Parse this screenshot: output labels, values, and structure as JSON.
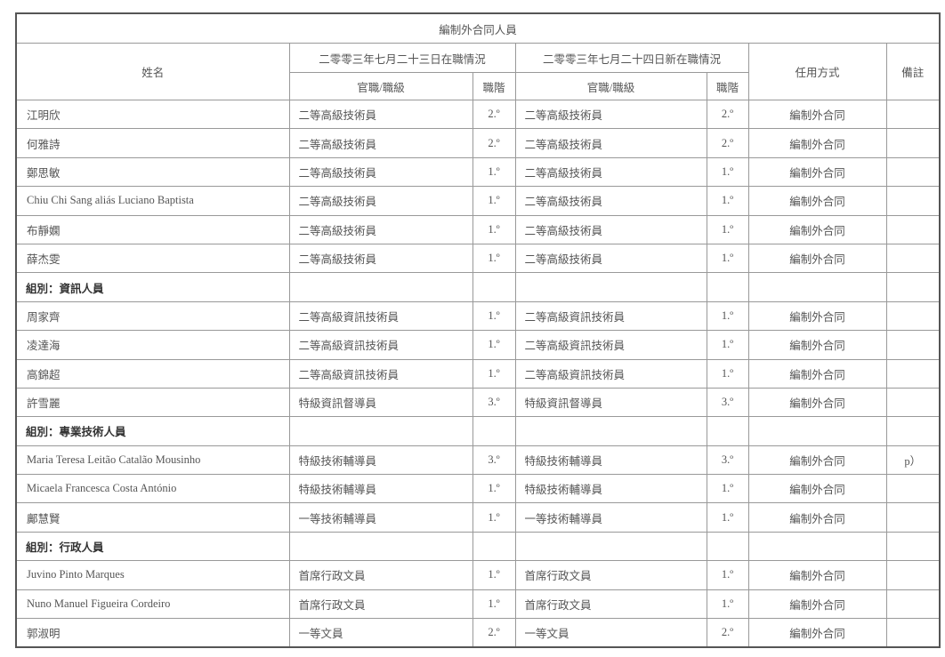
{
  "title": "編制外合同人員",
  "headers": {
    "name": "姓名",
    "period1": "二零零三年七月二十三日在職情況",
    "period2": "二零零三年七月二十四日新在職情況",
    "mode": "任用方式",
    "remarks": "備註",
    "rank": "官職/職級",
    "grade": "職階"
  },
  "rows": [
    {
      "name": "江明欣",
      "rank1": "二等高級技術員",
      "grade1": "2.º",
      "rank2": "二等高級技術員",
      "grade2": "2.º",
      "mode": "編制外合同",
      "remarks": ""
    },
    {
      "name": "何雅詩",
      "rank1": "二等高級技術員",
      "grade1": "2.º",
      "rank2": "二等高級技術員",
      "grade2": "2.º",
      "mode": "編制外合同",
      "remarks": ""
    },
    {
      "name": "鄭思敏",
      "rank1": "二等高級技術員",
      "grade1": "1.º",
      "rank2": "二等高級技術員",
      "grade2": "1.º",
      "mode": "編制外合同",
      "remarks": ""
    },
    {
      "name": "Chiu Chi Sang aliás Luciano Baptista",
      "rank1": "二等高級技術員",
      "grade1": "1.º",
      "rank2": "二等高級技術員",
      "grade2": "1.º",
      "mode": "編制外合同",
      "remarks": ""
    },
    {
      "name": "布靜嫻",
      "rank1": "二等高級技術員",
      "grade1": "1.º",
      "rank2": "二等高級技術員",
      "grade2": "1.º",
      "mode": "編制外合同",
      "remarks": ""
    },
    {
      "name": "薛杰雯",
      "rank1": "二等高級技術員",
      "grade1": "1.º",
      "rank2": "二等高級技術員",
      "grade2": "1.º",
      "mode": "編制外合同",
      "remarks": ""
    },
    {
      "group": "組別：資訊人員"
    },
    {
      "name": "周家齊",
      "rank1": "二等高級資訊技術員",
      "grade1": "1.º",
      "rank2": "二等高級資訊技術員",
      "grade2": "1.º",
      "mode": "編制外合同",
      "remarks": ""
    },
    {
      "name": "凌達海",
      "rank1": "二等高級資訊技術員",
      "grade1": "1.º",
      "rank2": "二等高級資訊技術員",
      "grade2": "1.º",
      "mode": "編制外合同",
      "remarks": ""
    },
    {
      "name": "高錦超",
      "rank1": "二等高級資訊技術員",
      "grade1": "1.º",
      "rank2": "二等高級資訊技術員",
      "grade2": "1.º",
      "mode": "編制外合同",
      "remarks": ""
    },
    {
      "name": "許雪麗",
      "rank1": "特級資訊督導員",
      "grade1": "3.º",
      "rank2": "特級資訊督導員",
      "grade2": "3.º",
      "mode": "編制外合同",
      "remarks": ""
    },
    {
      "group": "組別：專業技術人員"
    },
    {
      "name": "Maria Teresa Leitão Catalão Mousinho",
      "rank1": "特級技術輔導員",
      "grade1": "3.º",
      "rank2": "特級技術輔導員",
      "grade2": "3.º",
      "mode": "編制外合同",
      "remarks": "p）"
    },
    {
      "name": "Micaela Francesca Costa António",
      "rank1": "特級技術輔導員",
      "grade1": "1.º",
      "rank2": "特級技術輔導員",
      "grade2": "1.º",
      "mode": "編制外合同",
      "remarks": ""
    },
    {
      "name": "鄺慧賢",
      "rank1": "一等技術輔導員",
      "grade1": "1.º",
      "rank2": "一等技術輔導員",
      "grade2": "1.º",
      "mode": "編制外合同",
      "remarks": ""
    },
    {
      "group": "組別：行政人員"
    },
    {
      "name": "Juvino Pinto Marques",
      "rank1": "首席行政文員",
      "grade1": "1.º",
      "rank2": "首席行政文員",
      "grade2": "1.º",
      "mode": "編制外合同",
      "remarks": ""
    },
    {
      "name": "Nuno Manuel Figueira Cordeiro",
      "rank1": "首席行政文員",
      "grade1": "1.º",
      "rank2": "首席行政文員",
      "grade2": "1.º",
      "mode": "編制外合同",
      "remarks": ""
    },
    {
      "name": "郭淑明",
      "rank1": "一等文員",
      "grade1": "2.º",
      "rank2": "一等文員",
      "grade2": "2.º",
      "mode": "編制外合同",
      "remarks": ""
    }
  ]
}
